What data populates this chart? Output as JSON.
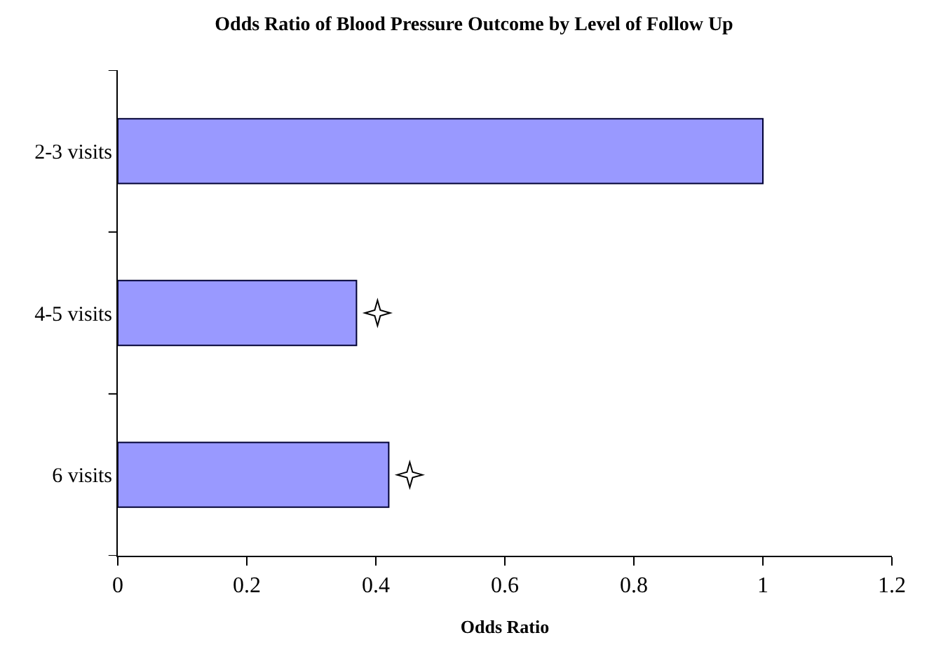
{
  "chart_data": {
    "type": "bar",
    "orientation": "horizontal",
    "title": "Odds Ratio of Blood Pressure Outcome by Level of Follow Up",
    "xlabel": "Odds Ratio",
    "categories": [
      "2-3 visits",
      "4-5 visits",
      "6 visits"
    ],
    "values": [
      1,
      0.37,
      0.42
    ],
    "color": "#9999ff",
    "xlim": [
      0,
      1.2
    ],
    "xticks": [
      0,
      0.2,
      0.4,
      0.6,
      0.8,
      1,
      1.2
    ]
  }
}
